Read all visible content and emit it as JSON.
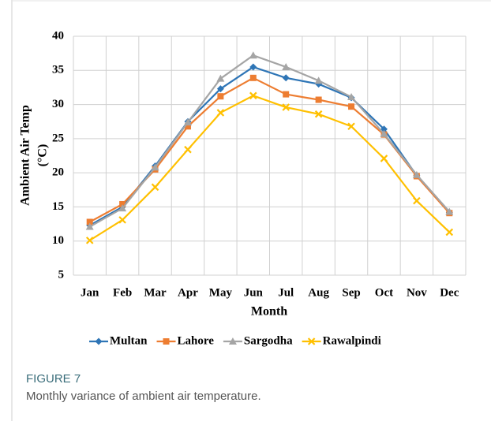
{
  "chart_data": {
    "type": "line",
    "y_label": [
      "Ambient Air Temp",
      "(°C)"
    ],
    "x_label": "Month",
    "categories": [
      "Jan",
      "Feb",
      "Mar",
      "Apr",
      "May",
      "Jun",
      "Jul",
      "Aug",
      "Sep",
      "Oct",
      "Nov",
      "Dec"
    ],
    "series": [
      {
        "name": "Multan",
        "color": "#2e75b6",
        "marker": "diamond",
        "values": [
          12.3,
          15.0,
          21.0,
          27.5,
          32.3,
          35.5,
          33.9,
          33.0,
          31.0,
          26.4,
          19.6,
          14.2
        ]
      },
      {
        "name": "Lahore",
        "color": "#ed7d31",
        "marker": "square",
        "values": [
          12.8,
          15.4,
          20.5,
          26.8,
          31.2,
          33.9,
          31.5,
          30.7,
          29.7,
          25.6,
          19.5,
          14.1
        ]
      },
      {
        "name": "Sargodha",
        "color": "#a5a5a5",
        "marker": "triangle",
        "values": [
          12.1,
          14.8,
          20.8,
          27.4,
          33.8,
          37.2,
          35.5,
          33.5,
          31.1,
          25.7,
          19.7,
          14.3
        ]
      },
      {
        "name": "Rawalpindi",
        "color": "#ffc000",
        "marker": "x",
        "values": [
          10.1,
          13.1,
          17.9,
          23.4,
          28.8,
          31.3,
          29.6,
          28.6,
          26.8,
          22.1,
          15.9,
          11.3
        ]
      }
    ],
    "ylim": [
      5,
      40
    ],
    "yticks": [
      5,
      10,
      15,
      20,
      25,
      30,
      35,
      40
    ],
    "grid": true,
    "legend": "bottom"
  },
  "figure": {
    "label": "FIGURE 7",
    "caption": "Monthly variance of ambient air temperature."
  }
}
